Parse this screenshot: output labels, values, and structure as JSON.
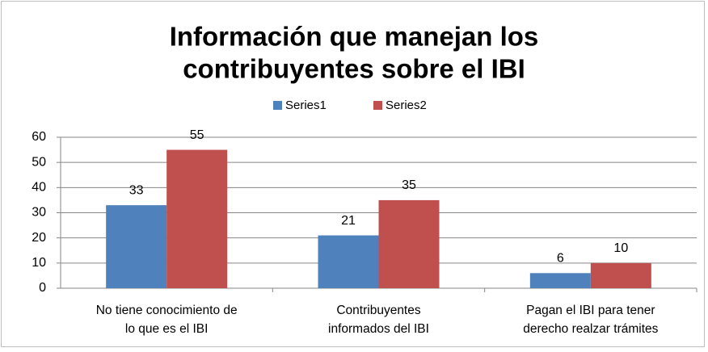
{
  "chart_data": {
    "type": "bar",
    "title": [
      "Información que manejan los",
      "contribuyentes  sobre el IBI"
    ],
    "categories": [
      [
        "No tiene conocimiento de",
        "lo que es el IBI"
      ],
      [
        "Contribuyentes",
        "informados del  IBI"
      ],
      [
        "Pagan el IBI para tener",
        "derecho realzar  trámites"
      ]
    ],
    "series": [
      {
        "name": "Series1",
        "color": "#4f81bd",
        "values": [
          33,
          21,
          6
        ]
      },
      {
        "name": "Series2",
        "color": "#c0504d",
        "values": [
          55,
          35,
          10
        ]
      }
    ],
    "ylim": [
      0,
      60
    ],
    "yticks": [
      0,
      10,
      20,
      30,
      40,
      50,
      60
    ],
    "grid": true,
    "legend": "top"
  }
}
